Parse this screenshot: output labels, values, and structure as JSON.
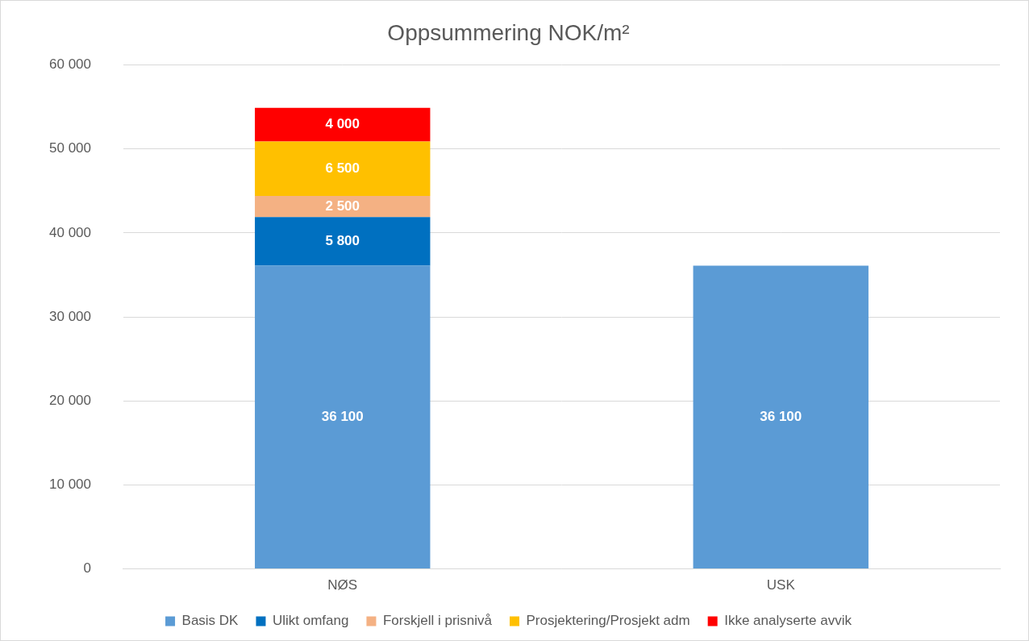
{
  "chart_data": {
    "type": "bar",
    "title": "Oppsummering NOK/m²",
    "categories": [
      "NØS",
      "USK"
    ],
    "series": [
      {
        "name": "Basis DK",
        "color": "#5b9bd5",
        "values": [
          36100,
          36100
        ],
        "value_labels": [
          "36 100",
          "36 100"
        ]
      },
      {
        "name": "Ulikt omfang",
        "color": "#0070c0",
        "values": [
          5800,
          null
        ],
        "value_labels": [
          "5 800",
          null
        ]
      },
      {
        "name": "Forskjell i prisnivå",
        "color": "#f4b183",
        "values": [
          2500,
          null
        ],
        "value_labels": [
          "2 500",
          null
        ]
      },
      {
        "name": "Prosjektering/Prosjekt adm",
        "color": "#ffc000",
        "values": [
          6500,
          null
        ],
        "value_labels": [
          "6 500",
          null
        ]
      },
      {
        "name": "Ikke analyserte avvik",
        "color": "#ff0000",
        "values": [
          4000,
          null
        ],
        "value_labels": [
          "4 000",
          null
        ]
      }
    ],
    "ylim": [
      0,
      60000
    ],
    "yticks": [
      0,
      {
        "value": 10000,
        "label": "10 000"
      },
      {
        "value": 20000,
        "label": "20 000"
      },
      {
        "value": 30000,
        "label": "30 000"
      },
      {
        "value": 40000,
        "label": "40 000"
      },
      {
        "value": 50000,
        "label": "50 000"
      },
      {
        "value": 60000,
        "label": "60 000"
      }
    ],
    "grid": true,
    "stacked": true,
    "data_labels": true,
    "legend": "bottom"
  }
}
